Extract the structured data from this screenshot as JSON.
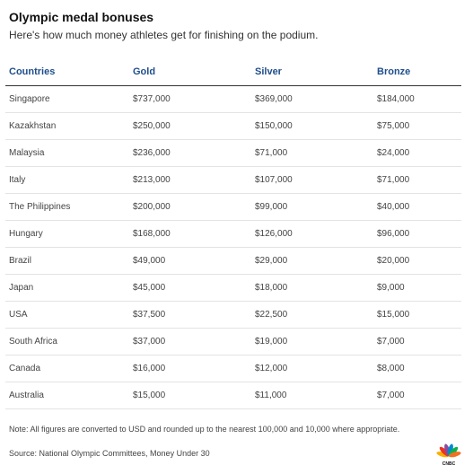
{
  "header": {
    "title": "Olympic medal bonuses",
    "subtitle": "Here's how much money athletes get for finishing on the podium."
  },
  "table": {
    "columns": [
      "Countries",
      "Gold",
      "Silver",
      "Bronze"
    ],
    "rows": [
      [
        "Singapore",
        "$737,000",
        "$369,000",
        "$184,000"
      ],
      [
        "Kazakhstan",
        "$250,000",
        "$150,000",
        "$75,000"
      ],
      [
        "Malaysia",
        "$236,000",
        "$71,000",
        "$24,000"
      ],
      [
        "Italy",
        "$213,000",
        "$107,000",
        "$71,000"
      ],
      [
        "The Philippines",
        "$200,000",
        "$99,000",
        "$40,000"
      ],
      [
        "Hungary",
        "$168,000",
        "$126,000",
        "$96,000"
      ],
      [
        "Brazil",
        "$49,000",
        "$29,000",
        "$20,000"
      ],
      [
        "Japan",
        "$45,000",
        "$18,000",
        "$9,000"
      ],
      [
        "USA",
        "$37,500",
        "$22,500",
        "$15,000"
      ],
      [
        "South Africa",
        "$37,000",
        "$19,000",
        "$7,000"
      ],
      [
        "Canada",
        "$16,000",
        "$12,000",
        "$8,000"
      ],
      [
        "Australia",
        "$15,000",
        "$11,000",
        "$7,000"
      ]
    ]
  },
  "footer": {
    "note": "Note: All figures are converted to USD and rounded up to the nearest 100,000 and 10,000 where appropriate.",
    "source": "Source: National Olympic Committees, Money Under 30",
    "logo": "CNBC",
    "logo_icon": "cnbc-peacock-logo"
  },
  "colors": {
    "header_text": "#1f4e8c",
    "title_text": "#111111",
    "body_text": "#444444",
    "row_divider": "#e3e3e3",
    "logo_feathers": [
      "#f9b000",
      "#ee3124",
      "#8d4a9c",
      "#0089cf",
      "#0db14b",
      "#f37021"
    ]
  }
}
